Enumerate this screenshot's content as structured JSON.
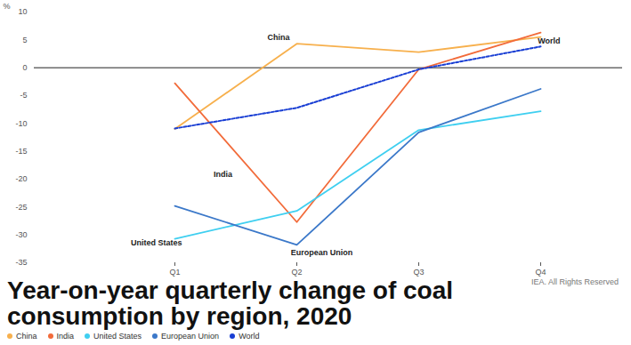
{
  "chart_data": {
    "type": "line",
    "title": "Year-on-year quarterly change of coal consumption by region, 2020",
    "caption": "IEA. All Rights Reserved",
    "y_label": "%",
    "categories": [
      "Q1",
      "Q2",
      "Q3",
      "Q4"
    ],
    "series": [
      {
        "name": "China",
        "color": "#f7b04d",
        "line_style": "solid",
        "values": [
          -11,
          4.3,
          2.8,
          5.5
        ]
      },
      {
        "name": "India",
        "color": "#f26b3a",
        "line_style": "solid",
        "values": [
          -2.8,
          -27.7,
          -0.3,
          6.3
        ]
      },
      {
        "name": "United States",
        "color": "#3fcff0",
        "line_style": "solid",
        "values": [
          -30.7,
          -25.7,
          -11.2,
          -7.8
        ]
      },
      {
        "name": "European Union",
        "color": "#3b78c9",
        "line_style": "solid",
        "values": [
          -24.8,
          -31.8,
          -11.6,
          -3.8
        ]
      },
      {
        "name": "World",
        "color": "#1a3fd4",
        "line_style": "dashed",
        "values": [
          -10.9,
          -7.2,
          -0.3,
          3.8
        ]
      }
    ],
    "ylim": [
      -35,
      10
    ],
    "yticks": [
      -35,
      -30,
      -25,
      -20,
      -15,
      -10,
      -5,
      0,
      5,
      10
    ],
    "grid": false,
    "legend": "bottom-left"
  }
}
